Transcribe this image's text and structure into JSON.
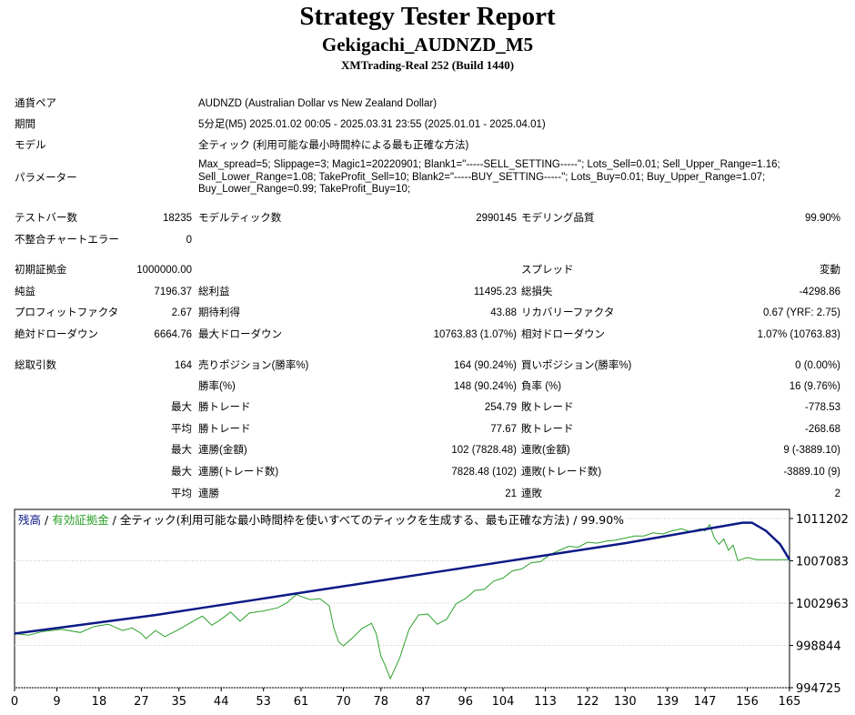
{
  "header": {
    "title": "Strategy Tester Report",
    "subtitle": "Gekigachi_AUDNZD_M5",
    "server": "XMTrading-Real 252 (Build 1440)"
  },
  "info": {
    "pair_label": "通貨ペア",
    "pair_value": "AUDNZD (Australian Dollar vs New Zealand Dollar)",
    "period_label": "期間",
    "period_value": "5分足(M5) 2025.01.02 00:05 - 2025.03.31 23:55 (2025.01.01 - 2025.04.01)",
    "model_label": "モデル",
    "model_value": "全ティック (利用可能な最小時間枠による最も正確な方法)",
    "params_label": "パラメーター",
    "params_lines": [
      "Max_spread=5; Slippage=3; Magic1=20220901; Blank1=\"-----SELL_SETTING-----\"; Lots_Sell=0.01; Sell_Upper_Range=1.16;",
      "Sell_Lower_Range=1.08; TakeProfit_Sell=10; Blank2=\"-----BUY_SETTING-----\"; Lots_Buy=0.01; Buy_Upper_Range=1.07;",
      "Buy_Lower_Range=0.99; TakeProfit_Buy=10;"
    ]
  },
  "stats": {
    "bars_label": "テストバー数",
    "bars_value": "18235",
    "ticks_label": "モデルティック数",
    "ticks_value": "2990145",
    "quality_label": "モデリング品質",
    "quality_value": "99.90%",
    "mismatch_label": "不整合チャートエラー",
    "mismatch_value": "0",
    "deposit_label": "初期証拠金",
    "deposit_value": "1000000.00",
    "spread_label": "スプレッド",
    "spread_value": "変動",
    "net_label": "純益",
    "net_value": "7196.37",
    "gross_profit_label": "総利益",
    "gross_profit_value": "11495.23",
    "gross_loss_label": "総損失",
    "gross_loss_value": "-4298.86",
    "pf_label": "プロフィットファクタ",
    "pf_value": "2.67",
    "expected_label": "期待利得",
    "expected_value": "43.88",
    "recovery_label": "リカバリーファクタ",
    "recovery_value": "0.67 (YRF: 2.75)",
    "abs_dd_label": "絶対ドローダウン",
    "abs_dd_value": "6664.76",
    "max_dd_label": "最大ドローダウン",
    "max_dd_value": "10763.83 (1.07%)",
    "rel_dd_label": "相対ドローダウン",
    "rel_dd_value": "1.07% (10763.83)",
    "trades_label": "総取引数",
    "trades_value": "164",
    "short_label": "売りポジション(勝率%)",
    "short_value": "164 (90.24%)",
    "long_label": "買いポジション(勝率%)",
    "long_value": "0 (0.00%)",
    "winrate_label": "勝率(%)",
    "winrate_value": "148 (90.24%)",
    "lossrate_label": "負率 (%)",
    "lossrate_value": "16 (9.76%)",
    "max_label": "最大",
    "avg_label": "平均",
    "max_win_label": "勝トレード",
    "max_win_value": "254.79",
    "max_loss_label": "敗トレード",
    "max_loss_value": "-778.53",
    "avg_win_label": "勝トレード",
    "avg_win_value": "77.67",
    "avg_loss_label": "敗トレード",
    "avg_loss_value": "-268.68",
    "cons_wins_money_label": "連勝(金額)",
    "cons_wins_money_value": "102 (7828.48)",
    "cons_losses_money_label": "連敗(金額)",
    "cons_losses_money_value": "9 (-3889.10)",
    "cons_wins_count_label": "連勝(トレード数)",
    "cons_wins_count_value": "7828.48 (102)",
    "cons_losses_count_label": "連敗(トレード数)",
    "cons_losses_count_value": "-3889.10 (9)",
    "avg_cons_wins_label": "連勝",
    "avg_cons_wins_value": "21",
    "avg_cons_losses_label": "連敗",
    "avg_cons_losses_value": "2"
  },
  "chart_data": {
    "type": "line",
    "legend_parts": [
      "残高",
      " / ",
      "有効証拠金",
      " / 全ティック(利用可能な最小時間枠を使いすべてのティックを生成する、最も正確な方法) / 99.90%"
    ],
    "x_ticks": [
      "0",
      "9",
      "18",
      "27",
      "35",
      "44",
      "53",
      "61",
      "70",
      "78",
      "87",
      "96",
      "104",
      "113",
      "122",
      "130",
      "139",
      "147",
      "156",
      "165"
    ],
    "y_ticks": [
      "1011202",
      "1007083",
      "1002963",
      "998844",
      "994725"
    ],
    "ylim": [
      994725,
      1012090
    ],
    "xlim": [
      0,
      165
    ],
    "colors": {
      "balance": "#0c1a86",
      "equity": "#2aa02a",
      "grid": "#c8c8c8",
      "border": "#000000"
    },
    "series": [
      {
        "name": "残高",
        "x": [
          0,
          10,
          20,
          30,
          40,
          50,
          60,
          70,
          80,
          90,
          100,
          110,
          120,
          130,
          140,
          150,
          155,
          157,
          160,
          163,
          165
        ],
        "values": [
          1000000,
          1000600,
          1001200,
          1001800,
          1002500,
          1003200,
          1003900,
          1004600,
          1005300,
          1006000,
          1006700,
          1007400,
          1008100,
          1008800,
          1009600,
          1010400,
          1010800,
          1010800,
          1010000,
          1008700,
          1007196
        ]
      },
      {
        "name": "有効証拠金",
        "x": [
          0,
          3,
          6,
          10,
          14,
          17,
          20,
          23,
          25,
          27,
          28,
          30,
          32,
          35,
          38,
          40,
          42,
          44,
          46,
          48,
          50,
          53,
          56,
          58,
          60,
          61,
          63,
          65,
          67,
          68,
          69,
          70,
          72,
          74,
          76,
          77,
          78,
          79,
          80,
          82,
          84,
          86,
          88,
          90,
          92,
          94,
          96,
          98,
          100,
          102,
          104,
          106,
          108,
          110,
          112,
          114,
          116,
          118,
          120,
          122,
          124,
          126,
          128,
          130,
          132,
          134,
          136,
          138,
          140,
          142,
          144,
          146,
          147,
          148,
          149,
          150,
          151,
          152,
          153,
          154,
          156,
          158,
          160,
          162,
          165
        ],
        "values": [
          1000000,
          999850,
          1000200,
          1000400,
          1000100,
          1000700,
          1000900,
          1000300,
          1000550,
          1000000,
          999500,
          1000300,
          999700,
          1000400,
          1001200,
          1001700,
          1000800,
          1001400,
          1002100,
          1001200,
          1002000,
          1002200,
          1002500,
          1003000,
          1003800,
          1003600,
          1003300,
          1003400,
          1002700,
          1000500,
          999200,
          998800,
          999600,
          1000500,
          1001000,
          1000000,
          997800,
          996800,
          995600,
          997600,
          1000400,
          1001800,
          1001900,
          1000900,
          1001400,
          1002900,
          1003400,
          1004200,
          1004300,
          1005100,
          1005400,
          1006100,
          1006300,
          1006900,
          1007000,
          1007700,
          1008100,
          1008500,
          1008400,
          1008900,
          1008800,
          1009000,
          1009100,
          1009300,
          1009500,
          1009500,
          1009800,
          1009700,
          1010000,
          1010200,
          1009900,
          1010200,
          1010000,
          1010600,
          1009300,
          1008700,
          1009200,
          1008100,
          1008600,
          1007100,
          1007400,
          1007196,
          1007196,
          1007196,
          1007196
        ]
      }
    ]
  }
}
